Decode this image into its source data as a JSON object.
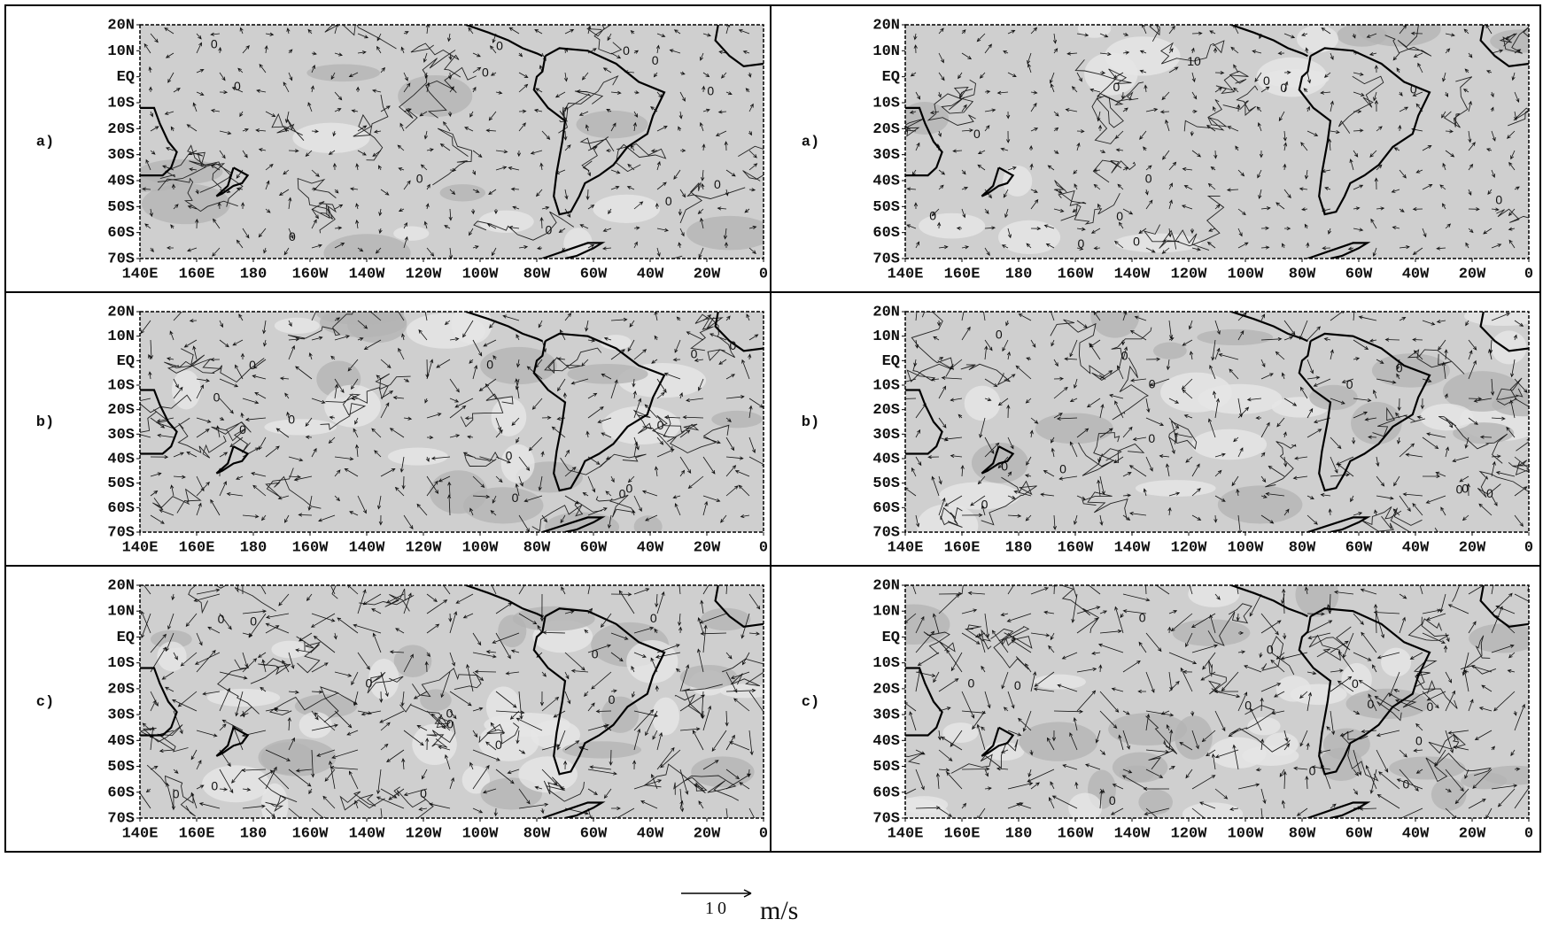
{
  "lat_labels": [
    "20N",
    "10N",
    "EQ",
    "10S",
    "20S",
    "30S",
    "40S",
    "50S",
    "60S",
    "70S"
  ],
  "lon_labels": [
    "140E",
    "160E",
    "180",
    "160W",
    "140W",
    "120W",
    "100W",
    "80W",
    "60W",
    "40W",
    "20W",
    "0"
  ],
  "panels": [
    {
      "label": "a)",
      "contour_labels": [
        "0",
        "0",
        "0",
        "0",
        "0",
        "0",
        "0",
        "0",
        "0",
        "0",
        "0",
        "0"
      ]
    },
    {
      "label": "a)",
      "contour_labels": [
        "0",
        "0",
        "0",
        "10",
        "0",
        "0",
        "0",
        "0",
        "0",
        "0",
        "0",
        "0"
      ]
    },
    {
      "label": "b)",
      "contour_labels": [
        "0",
        "0",
        "0",
        "0",
        "0",
        "0",
        "0",
        "0",
        "0",
        "0",
        "0",
        "0"
      ]
    },
    {
      "label": "b)",
      "contour_labels": [
        "0",
        "0",
        "0",
        "0",
        "0",
        "0",
        "0",
        "0",
        "0",
        "0",
        "0",
        "0"
      ]
    },
    {
      "label": "c)",
      "contour_labels": [
        "0",
        "0",
        "0",
        "0",
        "0",
        "0",
        "0",
        "0",
        "0",
        "0",
        "0",
        "0"
      ]
    },
    {
      "label": "c)",
      "contour_labels": [
        "0",
        "0",
        "0",
        "0",
        "0",
        "0",
        "0",
        "0",
        "0",
        "0",
        "0",
        "0"
      ]
    }
  ],
  "legend": {
    "value": "10",
    "unit": "m/s"
  }
}
